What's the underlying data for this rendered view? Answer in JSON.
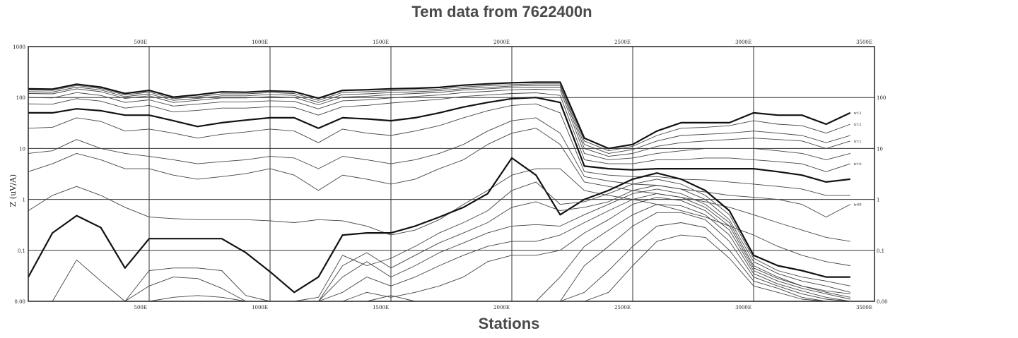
{
  "chart_data": {
    "type": "line",
    "title": "Tem data from 7622400n",
    "xlabel": "Stations",
    "ylabel": "Z (uV/A)",
    "y_scale": "log",
    "ylim": [
      0.01,
      1000
    ],
    "xlim": [
      0,
      3500
    ],
    "grid": true,
    "x_tick_values": [
      500,
      1000,
      1500,
      2000,
      2500,
      3000,
      3500
    ],
    "x_tick_labels": [
      "500E",
      "1000E",
      "1500E",
      "2000E",
      "2500E",
      "3000E",
      "3500E"
    ],
    "y_tick_values": [
      1000,
      100,
      10,
      1,
      0.1,
      0.01
    ],
    "y_tick_labels_left": [
      "1000",
      "100",
      "10",
      "1",
      "0.1",
      "0.00"
    ],
    "y_tick_labels_right": [
      "100",
      "10",
      "1",
      "0.1",
      "0.00"
    ],
    "x": [
      0,
      100,
      200,
      300,
      400,
      500,
      600,
      700,
      800,
      900,
      1000,
      1100,
      1200,
      1300,
      1400,
      1500,
      1600,
      1700,
      1800,
      1900,
      2000,
      2100,
      2200,
      2300,
      2400,
      2500,
      2600,
      2700,
      2800,
      2900,
      3000,
      3100,
      3200,
      3300,
      3400
    ],
    "series": [
      {
        "values": [
          148,
          146,
          183,
          160,
          120,
          138,
          102,
          113,
          129,
          127,
          135,
          130,
          97,
          138,
          142,
          148,
          152,
          158,
          175,
          185,
          195,
          200,
          200,
          16,
          10,
          12,
          22,
          32,
          32,
          32,
          50,
          45,
          45,
          30,
          50
        ],
        "bold": true,
        "label": "tr13"
      },
      {
        "values": [
          140,
          138,
          172,
          150,
          112,
          128,
          95,
          104,
          118,
          118,
          125,
          120,
          88,
          126,
          130,
          136,
          140,
          146,
          162,
          170,
          180,
          185,
          185,
          14,
          9,
          11,
          18,
          25,
          26,
          28,
          35,
          30,
          28,
          20,
          30
        ],
        "label": "tr12"
      },
      {
        "values": [
          130,
          128,
          160,
          140,
          104,
          118,
          88,
          96,
          108,
          108,
          115,
          110,
          80,
          114,
          118,
          125,
          130,
          136,
          150,
          158,
          168,
          172,
          172,
          12,
          8,
          9.5,
          14,
          18,
          19,
          20,
          22,
          20,
          18,
          13,
          18
        ]
      },
      {
        "values": [
          120,
          118,
          148,
          130,
          96,
          108,
          80,
          88,
          98,
          98,
          104,
          100,
          72,
          102,
          106,
          114,
          120,
          126,
          140,
          148,
          158,
          160,
          160,
          10,
          7,
          8,
          11,
          13,
          14,
          15,
          16,
          15,
          14,
          10,
          14
        ],
        "label": "tr11"
      },
      {
        "values": [
          100,
          98,
          125,
          110,
          80,
          90,
          68,
          74,
          82,
          82,
          86,
          84,
          60,
          86,
          90,
          98,
          105,
          112,
          125,
          132,
          142,
          145,
          140,
          8,
          6,
          6.5,
          8,
          9,
          10,
          10,
          10,
          9,
          8,
          6,
          8
        ]
      },
      {
        "values": [
          75,
          74,
          95,
          85,
          62,
          70,
          52,
          56,
          62,
          62,
          66,
          64,
          45,
          66,
          70,
          78,
          85,
          92,
          105,
          112,
          120,
          124,
          110,
          6,
          5,
          5,
          6,
          6,
          6.5,
          6.5,
          6,
          5.5,
          5,
          3.5,
          5
        ],
        "label": "tr10"
      },
      {
        "values": [
          50,
          50,
          60,
          55,
          45,
          45,
          35,
          27,
          32,
          36,
          40,
          40,
          25,
          40,
          38,
          35,
          40,
          50,
          65,
          80,
          95,
          100,
          80,
          4.5,
          4,
          3.8,
          4,
          4,
          4,
          4,
          4,
          3.5,
          3,
          2.2,
          2.5
        ],
        "bold": true
      },
      {
        "values": [
          25,
          26,
          40,
          34,
          22,
          24,
          20,
          16,
          19,
          21,
          24,
          22,
          13,
          24,
          20,
          18,
          22,
          28,
          40,
          55,
          70,
          75,
          50,
          3.5,
          3,
          2.8,
          2.8,
          2.5,
          2.4,
          2.2,
          2,
          1.8,
          1.6,
          1.2,
          1.2
        ]
      },
      {
        "values": [
          8,
          9,
          15,
          10,
          8,
          7,
          6,
          5,
          5.5,
          6,
          7,
          6.5,
          4,
          7,
          6,
          5,
          6,
          8,
          12,
          22,
          35,
          40,
          20,
          2.8,
          2.3,
          2,
          1.9,
          1.6,
          1.4,
          1.2,
          1.1,
          1,
          0.8,
          0.45,
          0.8
        ],
        "label": "tr09"
      },
      {
        "values": [
          3.5,
          5,
          8,
          6,
          4,
          4,
          3,
          2.5,
          2.8,
          3.2,
          4,
          3,
          1.5,
          3,
          2.5,
          2,
          2.5,
          4,
          6,
          12,
          20,
          25,
          12,
          2.2,
          1.8,
          1.5,
          1.3,
          1.1,
          0.9,
          0.7,
          0.5,
          0.35,
          0.25,
          0.18,
          0.15
        ]
      },
      {
        "values": [
          0.6,
          1.2,
          1.8,
          1.2,
          0.7,
          0.45,
          0.42,
          0.4,
          0.4,
          0.4,
          0.38,
          0.35,
          0.4,
          0.38,
          0.3,
          0.2,
          0.25,
          0.4,
          0.8,
          1.5,
          3,
          4,
          4,
          1.5,
          1.2,
          1,
          0.8,
          0.6,
          0.45,
          0.3,
          0.2,
          0.12,
          0.08,
          0.06,
          0.05
        ]
      },
      {
        "values": [
          0.03,
          0.22,
          0.48,
          0.28,
          0.045,
          0.17,
          0.17,
          0.17,
          0.17,
          0.09,
          0.038,
          0.015,
          0.03,
          0.2,
          0.22,
          0.22,
          0.3,
          0.45,
          0.7,
          1.3,
          6.5,
          3,
          0.5,
          1,
          1.5,
          2.5,
          3.3,
          2.5,
          1.5,
          0.6,
          0.08,
          0.05,
          0.04,
          0.03,
          0.03
        ],
        "bold": true
      },
      {
        "values": [
          0.002,
          0.002,
          0.065,
          0.025,
          0.006,
          0.04,
          0.045,
          0.045,
          0.04,
          0.013,
          0.005,
          0.004,
          0.012,
          0.08,
          0.05,
          0.07,
          0.12,
          0.22,
          0.35,
          0.6,
          1.5,
          2.2,
          0.8,
          0.9,
          1.3,
          2,
          2.5,
          2,
          1.2,
          0.5,
          0.07,
          0.04,
          0.03,
          0.025,
          0.02
        ]
      },
      {
        "values": [
          0.001,
          0.001,
          0.001,
          0.001,
          0.001,
          0.02,
          0.03,
          0.028,
          0.018,
          0.006,
          0.002,
          0.002,
          0.006,
          0.05,
          0.09,
          0.045,
          0.08,
          0.14,
          0.22,
          0.35,
          0.7,
          0.9,
          0.6,
          0.7,
          0.9,
          1.5,
          1.9,
          1.6,
          1,
          0.4,
          0.06,
          0.035,
          0.025,
          0.02,
          0.015
        ]
      },
      {
        "values": [
          0.001,
          0.001,
          0.001,
          0.001,
          0.001,
          0.004,
          0.012,
          0.013,
          0.012,
          0.006,
          0.002,
          0.002,
          0.003,
          0.03,
          0.06,
          0.03,
          0.05,
          0.09,
          0.14,
          0.22,
          0.3,
          0.32,
          0.3,
          0.5,
          0.8,
          1.3,
          1.6,
          1.3,
          0.8,
          0.35,
          0.05,
          0.03,
          0.02,
          0.016,
          0.014
        ]
      },
      {
        "values": [
          0.001,
          0.001,
          0.001,
          0.001,
          0.001,
          0.002,
          0.003,
          0.003,
          0.003,
          0.002,
          0.001,
          0.001,
          0.001,
          0.015,
          0.03,
          0.02,
          0.03,
          0.05,
          0.08,
          0.12,
          0.15,
          0.15,
          0.2,
          0.35,
          0.6,
          1,
          1.3,
          1.1,
          0.7,
          0.3,
          0.045,
          0.028,
          0.02,
          0.015,
          0.012
        ]
      },
      {
        "values": [
          0.001,
          0.001,
          0.001,
          0.001,
          0.001,
          0.001,
          0.001,
          0.001,
          0.001,
          0.001,
          0.001,
          0.001,
          0.001,
          0.005,
          0.015,
          0.012,
          0.015,
          0.02,
          0.03,
          0.06,
          0.08,
          0.08,
          0.1,
          0.22,
          0.4,
          0.8,
          1.1,
          0.95,
          0.6,
          0.25,
          0.04,
          0.025,
          0.018,
          0.014,
          0.011
        ]
      },
      {
        "values": [
          0.001,
          0.001,
          0.001,
          0.001,
          0.001,
          0.001,
          0.001,
          0.001,
          0.001,
          0.001,
          0.001,
          0.001,
          0.001,
          0.001,
          0.005,
          0.013,
          0.008,
          0.005,
          0.001,
          0.001,
          0.001,
          0.001,
          0.03,
          0.12,
          0.25,
          0.5,
          0.8,
          0.75,
          0.5,
          0.2,
          0.035,
          0.022,
          0.016,
          0.012,
          0.01
        ]
      },
      {
        "values": [
          0.001,
          0.001,
          0.001,
          0.001,
          0.001,
          0.001,
          0.001,
          0.001,
          0.001,
          0.001,
          0.001,
          0.001,
          0.001,
          0.001,
          0.001,
          0.001,
          0.001,
          0.001,
          0.001,
          0.001,
          0.001,
          0.001,
          0.01,
          0.05,
          0.12,
          0.3,
          0.55,
          0.55,
          0.4,
          0.15,
          0.03,
          0.02,
          0.014,
          0.011,
          0.009
        ]
      },
      {
        "values": [
          0.001,
          0.001,
          0.001,
          0.001,
          0.001,
          0.001,
          0.001,
          0.001,
          0.001,
          0.001,
          0.001,
          0.001,
          0.001,
          0.001,
          0.001,
          0.001,
          0.001,
          0.001,
          0.001,
          0.001,
          0.001,
          0.001,
          0.002,
          0.015,
          0.04,
          0.12,
          0.3,
          0.35,
          0.28,
          0.1,
          0.025,
          0.018,
          0.012,
          0.01,
          0.008
        ]
      },
      {
        "values": [
          0.001,
          0.001,
          0.001,
          0.001,
          0.001,
          0.001,
          0.001,
          0.001,
          0.001,
          0.001,
          0.001,
          0.001,
          0.001,
          0.001,
          0.001,
          0.001,
          0.001,
          0.001,
          0.001,
          0.001,
          0.001,
          0.001,
          0.001,
          0.005,
          0.015,
          0.05,
          0.15,
          0.2,
          0.18,
          0.07,
          0.02,
          0.015,
          0.011,
          0.009,
          0.007
        ]
      }
    ]
  }
}
